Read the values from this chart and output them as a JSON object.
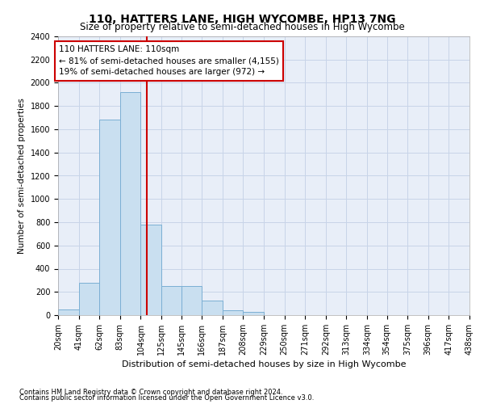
{
  "title": "110, HATTERS LANE, HIGH WYCOMBE, HP13 7NG",
  "subtitle": "Size of property relative to semi-detached houses in High Wycombe",
  "xlabel": "Distribution of semi-detached houses by size in High Wycombe",
  "ylabel": "Number of semi-detached properties",
  "footnote1": "Contains HM Land Registry data © Crown copyright and database right 2024.",
  "footnote2": "Contains public sector information licensed under the Open Government Licence v3.0.",
  "property_label": "110 HATTERS LANE: 110sqm",
  "pct_smaller": 81,
  "count_smaller": 4155,
  "pct_larger": 19,
  "count_larger": 972,
  "bar_edges": [
    20,
    41,
    62,
    83,
    104,
    125,
    145,
    166,
    187,
    208,
    229,
    250,
    271,
    292,
    313,
    334,
    354,
    375,
    396,
    417,
    438
  ],
  "bar_heights": [
    50,
    280,
    1680,
    1920,
    780,
    250,
    250,
    125,
    40,
    25,
    0,
    0,
    0,
    0,
    0,
    0,
    0,
    0,
    0,
    0
  ],
  "bar_color": "#c9dff0",
  "bar_edge_color": "#7bafd4",
  "vline_color": "#cc0000",
  "vline_x": 110,
  "annotation_box_color": "#cc0000",
  "grid_color": "#c8d4e8",
  "ylim": [
    0,
    2400
  ],
  "yticks": [
    0,
    200,
    400,
    600,
    800,
    1000,
    1200,
    1400,
    1600,
    1800,
    2000,
    2200,
    2400
  ],
  "bg_color": "#e8eef8",
  "title_fontsize": 10,
  "subtitle_fontsize": 8.5,
  "xlabel_fontsize": 8,
  "ylabel_fontsize": 7.5,
  "tick_fontsize": 7,
  "footnote_fontsize": 6,
  "tick_labels": [
    "20sqm",
    "41sqm",
    "62sqm",
    "83sqm",
    "104sqm",
    "125sqm",
    "145sqm",
    "166sqm",
    "187sqm",
    "208sqm",
    "229sqm",
    "250sqm",
    "271sqm",
    "292sqm",
    "313sqm",
    "334sqm",
    "354sqm",
    "375sqm",
    "396sqm",
    "417sqm",
    "438sqm"
  ]
}
